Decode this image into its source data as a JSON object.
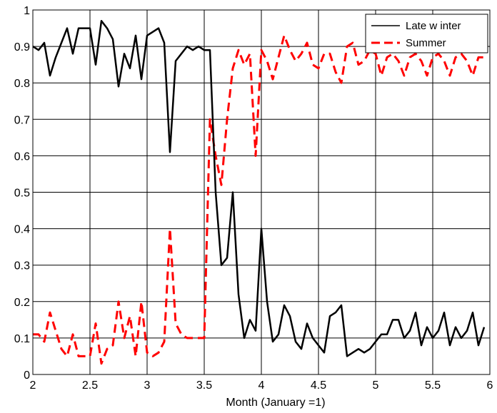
{
  "chart_data": {
    "type": "line",
    "title": "",
    "xlabel": "Month (January =1)",
    "ylabel": "",
    "xlim": [
      2,
      6
    ],
    "ylim": [
      0,
      1
    ],
    "grid": true,
    "legend_position": "top-right",
    "x_ticks": [
      "2",
      "2.5",
      "3",
      "3.5",
      "4",
      "4.5",
      "5",
      "5.5",
      "6"
    ],
    "y_ticks": [
      "0",
      "0.1",
      "0.2",
      "0.3",
      "0.4",
      "0.5",
      "0.6",
      "0.7",
      "0.8",
      "0.9",
      "1"
    ],
    "series": [
      {
        "name": "Late w inter",
        "color": "#000000",
        "style": "solid",
        "x": [
          2.0,
          2.05,
          2.1,
          2.15,
          2.2,
          2.25,
          2.3,
          2.35,
          2.4,
          2.45,
          2.5,
          2.55,
          2.6,
          2.65,
          2.7,
          2.75,
          2.8,
          2.85,
          2.9,
          2.95,
          3.0,
          3.05,
          3.1,
          3.15,
          3.2,
          3.25,
          3.3,
          3.35,
          3.4,
          3.45,
          3.5,
          3.55,
          3.6,
          3.65,
          3.7,
          3.75,
          3.8,
          3.85,
          3.9,
          3.95,
          4.0,
          4.05,
          4.1,
          4.15,
          4.2,
          4.25,
          4.3,
          4.35,
          4.4,
          4.45,
          4.5,
          4.55,
          4.6,
          4.65,
          4.7,
          4.75,
          4.8,
          4.85,
          4.9,
          4.95,
          5.0,
          5.05,
          5.1,
          5.15,
          5.2,
          5.25,
          5.3,
          5.35,
          5.4,
          5.45,
          5.5,
          5.55,
          5.6,
          5.65,
          5.7,
          5.75,
          5.8,
          5.85,
          5.9,
          5.95
        ],
        "y": [
          0.9,
          0.89,
          0.91,
          0.82,
          0.87,
          0.91,
          0.95,
          0.88,
          0.95,
          0.95,
          0.95,
          0.85,
          0.97,
          0.95,
          0.92,
          0.79,
          0.88,
          0.84,
          0.93,
          0.81,
          0.93,
          0.94,
          0.95,
          0.91,
          0.61,
          0.86,
          0.88,
          0.9,
          0.89,
          0.9,
          0.89,
          0.89,
          0.5,
          0.3,
          0.32,
          0.5,
          0.22,
          0.1,
          0.15,
          0.12,
          0.4,
          0.2,
          0.09,
          0.11,
          0.19,
          0.16,
          0.09,
          0.07,
          0.14,
          0.1,
          0.08,
          0.06,
          0.16,
          0.17,
          0.19,
          0.05,
          0.06,
          0.07,
          0.06,
          0.07,
          0.09,
          0.11,
          0.11,
          0.15,
          0.15,
          0.1,
          0.12,
          0.17,
          0.08,
          0.13,
          0.1,
          0.12,
          0.17,
          0.08,
          0.13,
          0.1,
          0.12,
          0.17,
          0.08,
          0.13
        ]
      },
      {
        "name": "Summer",
        "color": "#ff0000",
        "style": "dashed",
        "x": [
          2.0,
          2.05,
          2.1,
          2.15,
          2.2,
          2.25,
          2.3,
          2.35,
          2.4,
          2.45,
          2.5,
          2.55,
          2.6,
          2.65,
          2.7,
          2.75,
          2.8,
          2.85,
          2.9,
          2.95,
          3.0,
          3.05,
          3.1,
          3.15,
          3.2,
          3.25,
          3.3,
          3.35,
          3.4,
          3.45,
          3.5,
          3.55,
          3.6,
          3.65,
          3.7,
          3.75,
          3.8,
          3.85,
          3.9,
          3.95,
          4.0,
          4.05,
          4.1,
          4.15,
          4.2,
          4.25,
          4.3,
          4.35,
          4.4,
          4.45,
          4.5,
          4.55,
          4.6,
          4.65,
          4.7,
          4.75,
          4.8,
          4.85,
          4.9,
          4.95,
          5.0,
          5.05,
          5.1,
          5.15,
          5.2,
          5.25,
          5.3,
          5.35,
          5.4,
          5.45,
          5.5,
          5.55,
          5.6,
          5.65,
          5.7,
          5.75,
          5.8,
          5.85,
          5.9,
          5.95
        ],
        "y": [
          0.11,
          0.11,
          0.09,
          0.17,
          0.12,
          0.07,
          0.05,
          0.11,
          0.05,
          0.05,
          0.05,
          0.14,
          0.03,
          0.07,
          0.08,
          0.2,
          0.1,
          0.16,
          0.05,
          0.2,
          0.06,
          0.05,
          0.06,
          0.09,
          0.4,
          0.14,
          0.11,
          0.1,
          0.1,
          0.1,
          0.1,
          0.7,
          0.6,
          0.52,
          0.7,
          0.84,
          0.89,
          0.85,
          0.88,
          0.6,
          0.89,
          0.86,
          0.81,
          0.87,
          0.93,
          0.89,
          0.86,
          0.88,
          0.91,
          0.85,
          0.84,
          0.88,
          0.88,
          0.83,
          0.8,
          0.9,
          0.91,
          0.85,
          0.86,
          0.89,
          0.88,
          0.82,
          0.87,
          0.88,
          0.86,
          0.82,
          0.87,
          0.88,
          0.86,
          0.82,
          0.87,
          0.88,
          0.86,
          0.82,
          0.87,
          0.88,
          0.86,
          0.82,
          0.87,
          0.87
        ]
      }
    ]
  }
}
